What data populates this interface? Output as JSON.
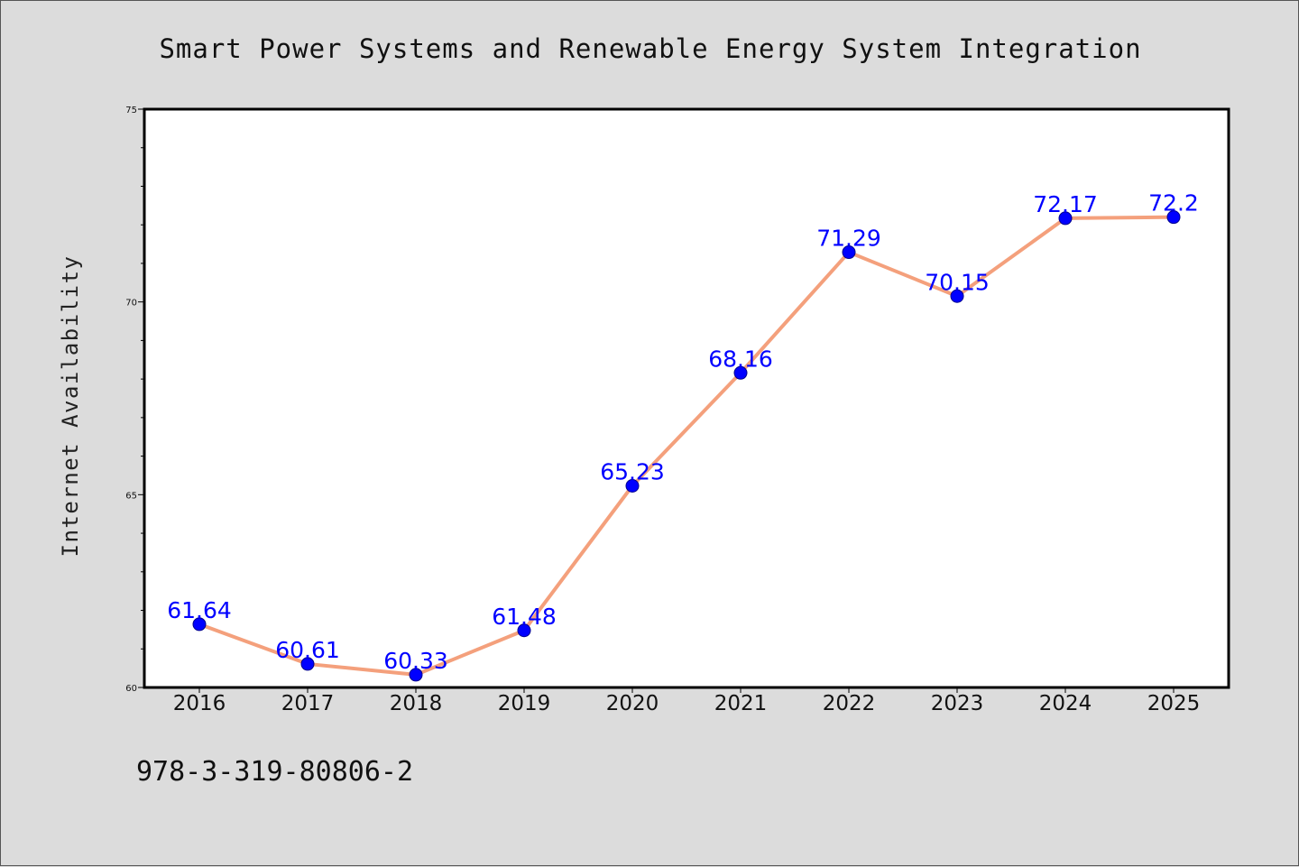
{
  "colors": {
    "background": "#dcdcdc",
    "plot_background": "#ffffff",
    "line": "#f4a07c",
    "marker": "#0000ff",
    "data_label": "#0000ff"
  },
  "footer": {
    "isbn": "978-3-319-80806-2"
  },
  "chart_data": {
    "type": "line",
    "title": "Smart Power Systems and Renewable Energy System Integration",
    "xlabel": "",
    "ylabel": "Internet Availability",
    "categories": [
      "2016",
      "2017",
      "2018",
      "2019",
      "2020",
      "2021",
      "2022",
      "2023",
      "2024",
      "2025"
    ],
    "series": [
      {
        "values": [
          61.64,
          60.61,
          60.33,
          61.48,
          65.23,
          68.16,
          71.29,
          70.15,
          72.17,
          72.2
        ],
        "data_labels": [
          "61.64",
          "60.61",
          "60.33",
          "61.48",
          "65.23",
          "68.16",
          "71.29",
          "70.15",
          "72.17",
          "72.2"
        ]
      }
    ],
    "ylim": [
      60,
      75
    ],
    "yticks": [
      "60",
      "65",
      "70",
      "75"
    ],
    "grid": false,
    "legend": "none"
  }
}
